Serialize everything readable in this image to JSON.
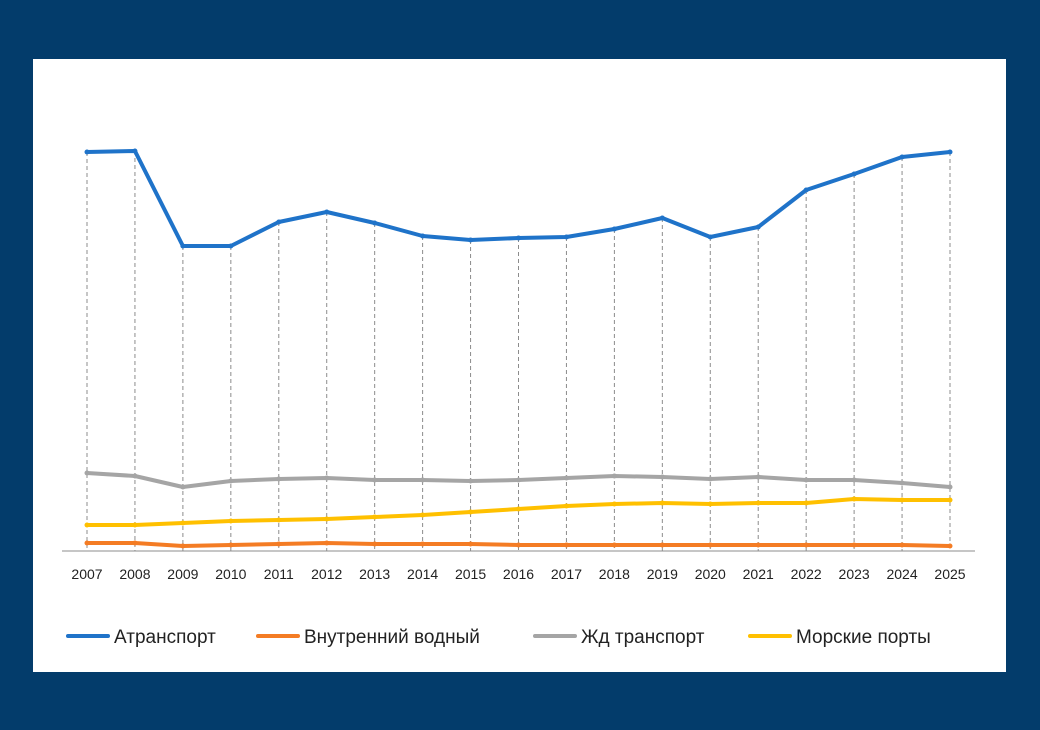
{
  "chart_data": {
    "type": "line",
    "title": "",
    "xlabel": "",
    "ylabel": "",
    "y_axis_labels_shown": false,
    "y_units": "relative (no y scale printed)",
    "ylim": [
      0,
      420
    ],
    "grid": "vertical dashed drop lines",
    "legend_placement": "bottom",
    "categories": [
      "2007",
      "2008",
      "2009",
      "2010",
      "2011",
      "2012",
      "2013",
      "2014",
      "2015",
      "2016",
      "2017",
      "2018",
      "2019",
      "2020",
      "2021",
      "2022",
      "2023",
      "2024",
      "2025"
    ],
    "series": [
      {
        "name": "Атранспорт",
        "color": "#1f73c9",
        "values": [
          399,
          400,
          305,
          305,
          329,
          339,
          328,
          315,
          311,
          313,
          314,
          322,
          333,
          314,
          324,
          361,
          377,
          394,
          399
        ]
      },
      {
        "name": "Внутренний водный",
        "color": "#f47c24",
        "values": [
          8,
          8,
          5,
          6,
          7,
          8,
          7,
          7,
          7,
          6,
          6,
          6,
          6,
          6,
          6,
          6,
          6,
          6,
          5
        ]
      },
      {
        "name": "Жд транспорт",
        "color": "#a5a5a5",
        "values": [
          78,
          75,
          64,
          70,
          72,
          73,
          71,
          71,
          70,
          71,
          73,
          75,
          74,
          72,
          74,
          71,
          71,
          68,
          64
        ]
      },
      {
        "name": "Морские порты",
        "color": "#ffc000",
        "values": [
          26,
          26,
          28,
          30,
          31,
          32,
          34,
          36,
          39,
          42,
          45,
          47,
          48,
          47,
          48,
          48,
          52,
          51,
          51
        ]
      }
    ]
  }
}
